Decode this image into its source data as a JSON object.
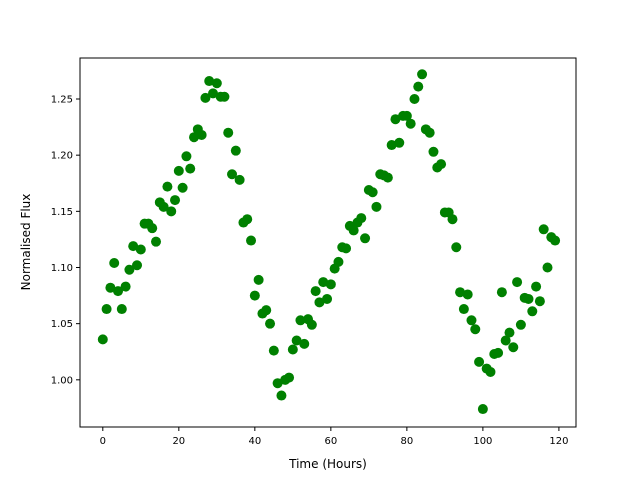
{
  "chart_data": {
    "type": "scatter",
    "title": "",
    "xlabel": "Time (Hours)",
    "ylabel": "Normalised Flux",
    "xlim": [
      -6,
      124.5
    ],
    "ylim": [
      0.958,
      1.2865
    ],
    "xticks": [
      0,
      20,
      40,
      60,
      80,
      100,
      120
    ],
    "xtick_labels": [
      "0",
      "20",
      "40",
      "60",
      "80",
      "100",
      "120"
    ],
    "yticks": [
      1.0,
      1.05,
      1.1,
      1.15,
      1.2,
      1.25
    ],
    "ytick_labels": [
      "1.00",
      "1.05",
      "1.10",
      "1.15",
      "1.20",
      "1.25"
    ],
    "grid": false,
    "marker_color": "#008000",
    "series": [
      {
        "x": [
          0,
          1,
          2,
          3,
          4,
          5,
          6,
          7,
          8,
          9,
          10,
          11,
          12,
          13,
          14,
          15,
          16,
          17,
          18,
          19,
          20,
          21,
          22,
          23,
          24,
          25,
          26,
          27,
          28,
          29,
          30,
          31,
          32,
          33,
          34,
          35,
          36,
          37,
          38,
          39,
          40,
          41,
          42,
          43,
          44,
          45,
          46,
          47,
          48,
          49,
          50,
          51,
          52,
          53,
          54,
          55,
          56,
          57,
          58,
          59,
          60,
          61,
          62,
          63,
          64,
          65,
          66,
          67,
          68,
          69,
          70,
          71,
          72,
          73,
          74,
          75,
          76,
          77,
          78,
          79,
          80,
          81,
          82,
          83,
          84,
          85,
          86,
          87,
          88,
          89,
          90,
          91,
          92,
          93,
          94,
          95,
          96,
          97,
          98,
          99,
          100,
          101,
          102,
          103,
          104,
          105,
          106,
          107,
          108,
          109,
          110,
          111,
          112,
          113,
          114,
          115,
          116,
          117,
          118,
          119
        ],
        "y": [
          1.036,
          1.063,
          1.082,
          1.104,
          1.079,
          1.063,
          1.083,
          1.098,
          1.119,
          1.102,
          1.116,
          1.139,
          1.139,
          1.135,
          1.123,
          1.158,
          1.154,
          1.172,
          1.15,
          1.16,
          1.186,
          1.171,
          1.199,
          1.188,
          1.216,
          1.223,
          1.218,
          1.251,
          1.266,
          1.255,
          1.264,
          1.252,
          1.252,
          1.22,
          1.183,
          1.204,
          1.178,
          1.14,
          1.143,
          1.124,
          1.075,
          1.089,
          1.059,
          1.062,
          1.05,
          1.026,
          0.997,
          0.986,
          1.0,
          1.002,
          1.027,
          1.035,
          1.053,
          1.032,
          1.054,
          1.049,
          1.079,
          1.069,
          1.087,
          1.072,
          1.085,
          1.099,
          1.105,
          1.118,
          1.117,
          1.137,
          1.133,
          1.14,
          1.144,
          1.126,
          1.169,
          1.167,
          1.154,
          1.183,
          1.182,
          1.18,
          1.209,
          1.232,
          1.211,
          1.235,
          1.235,
          1.228,
          1.25,
          1.261,
          1.272,
          1.223,
          1.22,
          1.203,
          1.189,
          1.192,
          1.149,
          1.149,
          1.143,
          1.118,
          1.078,
          1.063,
          1.076,
          1.053,
          1.045,
          1.016,
          0.974,
          1.01,
          1.007,
          1.023,
          1.024,
          1.078,
          1.035,
          1.042,
          1.029,
          1.087,
          1.049,
          1.073,
          1.072,
          1.061,
          1.083,
          1.07,
          1.134,
          1.1,
          1.127,
          1.124
        ]
      }
    ]
  }
}
